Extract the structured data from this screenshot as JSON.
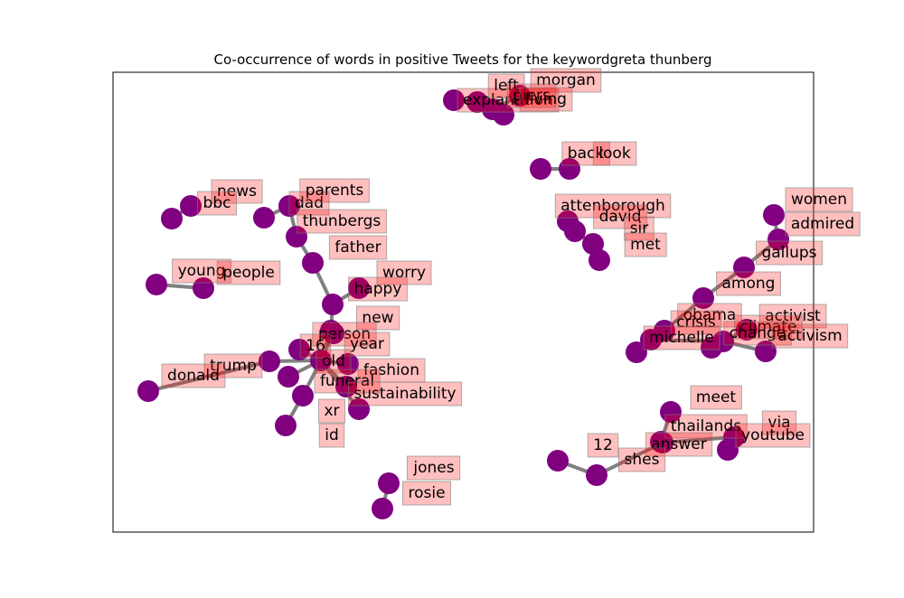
{
  "chart_data": {
    "type": "network",
    "title": "Co-occurrence of words in positive Tweets for the keywordgreta thunberg",
    "colors": {
      "node": "#800080",
      "edge": "#808080",
      "label_fill": "#ff0000",
      "label_border": "#7f7f7f"
    },
    "axes_frame": true,
    "ticks_visible": false,
    "nodes": [
      {
        "id": "explanation",
        "label": "explanation"
      },
      {
        "id": "left",
        "label": "left"
      },
      {
        "id": "morgan",
        "label": "morgan"
      },
      {
        "id": "piers",
        "label": "piers"
      },
      {
        "id": "living",
        "label": "living"
      },
      {
        "id": "back",
        "label": "back"
      },
      {
        "id": "look",
        "label": "look"
      },
      {
        "id": "news",
        "label": "news"
      },
      {
        "id": "bbc",
        "label": "bbc"
      },
      {
        "id": "dad",
        "label": "dad"
      },
      {
        "id": "parents",
        "label": "parents"
      },
      {
        "id": "thunbergs",
        "label": "thunbergs"
      },
      {
        "id": "father",
        "label": "father"
      },
      {
        "id": "young",
        "label": "young"
      },
      {
        "id": "people",
        "label": "people"
      },
      {
        "id": "worry",
        "label": "worry"
      },
      {
        "id": "happy",
        "label": "happy"
      },
      {
        "id": "new",
        "label": "new"
      },
      {
        "id": "person",
        "label": "person"
      },
      {
        "id": "16",
        "label": "16"
      },
      {
        "id": "year",
        "label": "year"
      },
      {
        "id": "old",
        "label": "old"
      },
      {
        "id": "trump",
        "label": "trump"
      },
      {
        "id": "donald",
        "label": "donald"
      },
      {
        "id": "fashion",
        "label": "fashion"
      },
      {
        "id": "funeral",
        "label": "funeral"
      },
      {
        "id": "sustainability",
        "label": "sustainability"
      },
      {
        "id": "xr",
        "label": "xr"
      },
      {
        "id": "id",
        "label": "id"
      },
      {
        "id": "jones",
        "label": "jones"
      },
      {
        "id": "rosie",
        "label": "rosie"
      },
      {
        "id": "attenborough",
        "label": "attenborough"
      },
      {
        "id": "david",
        "label": "david"
      },
      {
        "id": "sir",
        "label": "sir"
      },
      {
        "id": "met",
        "label": "met"
      },
      {
        "id": "women",
        "label": "women"
      },
      {
        "id": "admired",
        "label": "admired"
      },
      {
        "id": "gallups",
        "label": "gallups"
      },
      {
        "id": "among",
        "label": "among"
      },
      {
        "id": "obama",
        "label": "obama"
      },
      {
        "id": "crisis",
        "label": "crisis"
      },
      {
        "id": "michelle",
        "label": "michelle"
      },
      {
        "id": "activist",
        "label": "activist"
      },
      {
        "id": "climate",
        "label": "climate"
      },
      {
        "id": "change",
        "label": "change"
      },
      {
        "id": "activism",
        "label": "activism"
      },
      {
        "id": "meet",
        "label": "meet"
      },
      {
        "id": "thailands",
        "label": "thailands"
      },
      {
        "id": "via",
        "label": "via"
      },
      {
        "id": "12",
        "label": "12"
      },
      {
        "id": "answer",
        "label": "answer"
      },
      {
        "id": "youtube",
        "label": "youtube"
      },
      {
        "id": "shes",
        "label": "shes"
      }
    ],
    "edges": [
      [
        "explanation",
        "left"
      ],
      [
        "left",
        "piers"
      ],
      [
        "piers",
        "morgan"
      ],
      [
        "piers",
        "living"
      ],
      [
        "back",
        "look"
      ],
      [
        "news",
        "bbc"
      ],
      [
        "dad",
        "parents"
      ],
      [
        "dad",
        "thunbergs"
      ],
      [
        "thunbergs",
        "father"
      ],
      [
        "father",
        "happy"
      ],
      [
        "young",
        "people"
      ],
      [
        "happy",
        "worry"
      ],
      [
        "happy",
        "new"
      ],
      [
        "new",
        "old"
      ],
      [
        "person",
        "old"
      ],
      [
        "16",
        "old"
      ],
      [
        "year",
        "old"
      ],
      [
        "trump",
        "old"
      ],
      [
        "donald",
        "trump"
      ],
      [
        "fashion",
        "old"
      ],
      [
        "funeral",
        "old"
      ],
      [
        "sustainability",
        "old"
      ],
      [
        "xr",
        "old"
      ],
      [
        "id",
        "xr"
      ],
      [
        "jones",
        "rosie"
      ],
      [
        "attenborough",
        "david"
      ],
      [
        "david",
        "sir"
      ],
      [
        "sir",
        "met"
      ],
      [
        "women",
        "admired"
      ],
      [
        "admired",
        "gallups"
      ],
      [
        "gallups",
        "among"
      ],
      [
        "among",
        "obama"
      ],
      [
        "obama",
        "michelle"
      ],
      [
        "obama",
        "crisis"
      ],
      [
        "crisis",
        "climate"
      ],
      [
        "climate",
        "activist"
      ],
      [
        "climate",
        "change"
      ],
      [
        "climate",
        "activism"
      ],
      [
        "meet",
        "thailands"
      ],
      [
        "thailands",
        "answer"
      ],
      [
        "answer",
        "shes"
      ],
      [
        "12",
        "shes"
      ],
      [
        "answer",
        "via"
      ],
      [
        "via",
        "youtube"
      ]
    ]
  }
}
